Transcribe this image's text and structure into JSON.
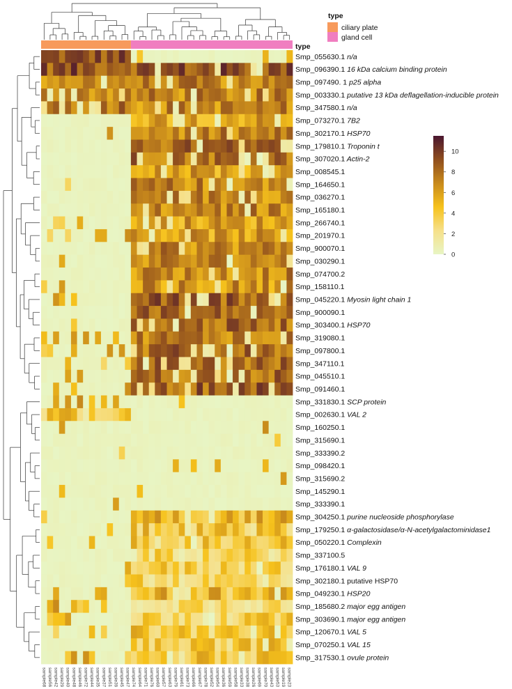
{
  "chart_data": {
    "type": "heatmap",
    "title": "",
    "annotation_label": "type",
    "legend_title": "type",
    "groups": [
      {
        "name": "ciliary plate",
        "color": "#F79A5C",
        "n": 15
      },
      {
        "name": "gland cell",
        "color": "#F07EC0",
        "n": 27
      }
    ],
    "color_scale": {
      "ticks": [
        0,
        2,
        4,
        6,
        8,
        10
      ],
      "min": 0,
      "max": 11.5,
      "colors": [
        "#E8F5C4",
        "#F6E08A",
        "#F6C21C",
        "#C88A1C",
        "#8F4E1E",
        "#4A1630"
      ]
    },
    "genes": [
      {
        "id": "Smp_055630.1",
        "name": "n/a",
        "italic": true
      },
      {
        "id": "Smp_096390.1",
        "name": "16 kDa calcium binding protein",
        "italic": true
      },
      {
        "id": "Smp_097490. 1",
        "name": "p25 alpha",
        "italic": true
      },
      {
        "id": "Smp_003330.1",
        "name": "putative 13 kDa deflagellation-inducible protein",
        "italic": true
      },
      {
        "id": "Smp_347580.1",
        "name": "n/a",
        "italic": true
      },
      {
        "id": "Smp_073270.1",
        "name": "7B2",
        "italic": true
      },
      {
        "id": "Smp_302170.1",
        "name": "HSP70",
        "italic": true
      },
      {
        "id": "Smp_179810.1",
        "name": "Troponin t",
        "italic": true
      },
      {
        "id": "Smp_307020.1",
        "name": "Actin-2",
        "italic": true
      },
      {
        "id": "Smp_008545.1",
        "name": "",
        "italic": false
      },
      {
        "id": "Smp_164650.1",
        "name": "",
        "italic": false
      },
      {
        "id": "Smp_036270.1",
        "name": "",
        "italic": false
      },
      {
        "id": "Smp_165180.1",
        "name": "",
        "italic": false
      },
      {
        "id": "Smp_266740.1",
        "name": "",
        "italic": false
      },
      {
        "id": "Smp_201970.1",
        "name": "",
        "italic": false
      },
      {
        "id": "Smp_900070.1",
        "name": "",
        "italic": false
      },
      {
        "id": "Smp_030290.1",
        "name": "",
        "italic": false
      },
      {
        "id": "Smp_074700.2",
        "name": "",
        "italic": false
      },
      {
        "id": "Smp_158110.1",
        "name": "",
        "italic": false
      },
      {
        "id": "Smp_045220.1",
        "name": "Myosin light chain 1",
        "italic": true
      },
      {
        "id": "Smp_900090.1",
        "name": "",
        "italic": false
      },
      {
        "id": "Smp_303400.1",
        "name": "HSP70",
        "italic": true
      },
      {
        "id": "Smp_319080.1",
        "name": "",
        "italic": false
      },
      {
        "id": "Smp_097800.1",
        "name": "",
        "italic": false
      },
      {
        "id": "Smp_347110.1",
        "name": "",
        "italic": false
      },
      {
        "id": "Smp_045510.1",
        "name": "",
        "italic": false
      },
      {
        "id": "Smp_091460.1",
        "name": "",
        "italic": false
      },
      {
        "id": "Smp_331830.1",
        "name": "SCP protein",
        "italic": true
      },
      {
        "id": "Smp_002630.1",
        "name": "VAL 2",
        "italic": true
      },
      {
        "id": "Smp_160250.1",
        "name": "",
        "italic": false
      },
      {
        "id": "Smp_315690.1",
        "name": "",
        "italic": false
      },
      {
        "id": "Smp_333390.2",
        "name": "",
        "italic": false
      },
      {
        "id": "Smp_098420.1",
        "name": "",
        "italic": false
      },
      {
        "id": "Smp_315690.2",
        "name": "",
        "italic": false
      },
      {
        "id": "Smp_145290.1",
        "name": "",
        "italic": false
      },
      {
        "id": "Smp_333390.1",
        "name": "",
        "italic": false
      },
      {
        "id": "Smp_304250.1",
        "name": "purine nucleoside phosphorylase",
        "italic": true
      },
      {
        "id": "Smp_179250.1",
        "name": "α-galactosidase/α-N-acetylgalactominidase1",
        "italic": true
      },
      {
        "id": "Smp_050220.1",
        "name": "Complexin",
        "italic": true
      },
      {
        "id": "Smp_337100.5",
        "name": "",
        "italic": false
      },
      {
        "id": "Smp_176180.1",
        "name": "VAL 9",
        "italic": true
      },
      {
        "id": "Smp_302180.1",
        "name": "putative HSP70",
        "italic": false
      },
      {
        "id": "Smp_049230.1",
        "name": "HSP20",
        "italic": true
      },
      {
        "id": "Smp_185680.2",
        "name": "major egg antigen",
        "italic": true
      },
      {
        "id": "Smp_303690.1",
        "name": "major egg antigen",
        "italic": true
      },
      {
        "id": "Smp_120670.1",
        "name": "VAL 5",
        "italic": true
      },
      {
        "id": "Smp_070250.1",
        "name": "VAL 15",
        "italic": true
      },
      {
        "id": "Smp_317530.1",
        "name": "ovule protein",
        "italic": true
      }
    ],
    "row_profiles_mean": [
      [
        9,
        1.5
      ],
      [
        9,
        9
      ],
      [
        7,
        7
      ],
      [
        7,
        7
      ],
      [
        8,
        7
      ],
      [
        0,
        6
      ],
      [
        0.3,
        7
      ],
      [
        0,
        8
      ],
      [
        0,
        8
      ],
      [
        0.2,
        6
      ],
      [
        0.2,
        7
      ],
      [
        0.3,
        7
      ],
      [
        1,
        7
      ],
      [
        0.5,
        6
      ],
      [
        0.5,
        6
      ],
      [
        0.3,
        7
      ],
      [
        0.2,
        7
      ],
      [
        0.3,
        7
      ],
      [
        0.3,
        6.5
      ],
      [
        1,
        8.5
      ],
      [
        0.5,
        8
      ],
      [
        2,
        8
      ],
      [
        1,
        7.5
      ],
      [
        1.5,
        8
      ],
      [
        1.2,
        8
      ],
      [
        0.5,
        8
      ],
      [
        1.5,
        8.5
      ],
      [
        2,
        0.5
      ],
      [
        4,
        0.2
      ],
      [
        0.8,
        0.2
      ],
      [
        0.3,
        0.3
      ],
      [
        0.2,
        0.2
      ],
      [
        0.5,
        0.2
      ],
      [
        0.2,
        0.3
      ],
      [
        0.3,
        0.2
      ],
      [
        0.3,
        0.2
      ],
      [
        0.5,
        5
      ],
      [
        1,
        4
      ],
      [
        0.5,
        4
      ],
      [
        0.3,
        3
      ],
      [
        0.5,
        3.5
      ],
      [
        0.5,
        3
      ],
      [
        2,
        5
      ],
      [
        1.5,
        3
      ],
      [
        1,
        3.5
      ],
      [
        0.5,
        4
      ],
      [
        1,
        4
      ],
      [
        1.5,
        4
      ]
    ],
    "samples": [
      "sample68",
      "sample56",
      "sample42",
      "sample29",
      "sample40",
      "sample48",
      "sample46",
      "sample72",
      "sample44",
      "sample35",
      "sample37",
      "sample51",
      "sample39",
      "sample45",
      "sample47",
      "sample74",
      "sample64",
      "sample71",
      "sample76",
      "sample60",
      "sample57",
      "sample63",
      "sample79",
      "sample61",
      "sample73",
      "sample66",
      "sample67",
      "sample78",
      "sample52",
      "sample54",
      "sample36",
      "sample59",
      "sample58",
      "sample33",
      "sample38",
      "sample26",
      "sample69",
      "sample70",
      "sample43",
      "sample53",
      "sample19",
      "sample23"
    ],
    "xlabel": "",
    "ylabel": ""
  }
}
